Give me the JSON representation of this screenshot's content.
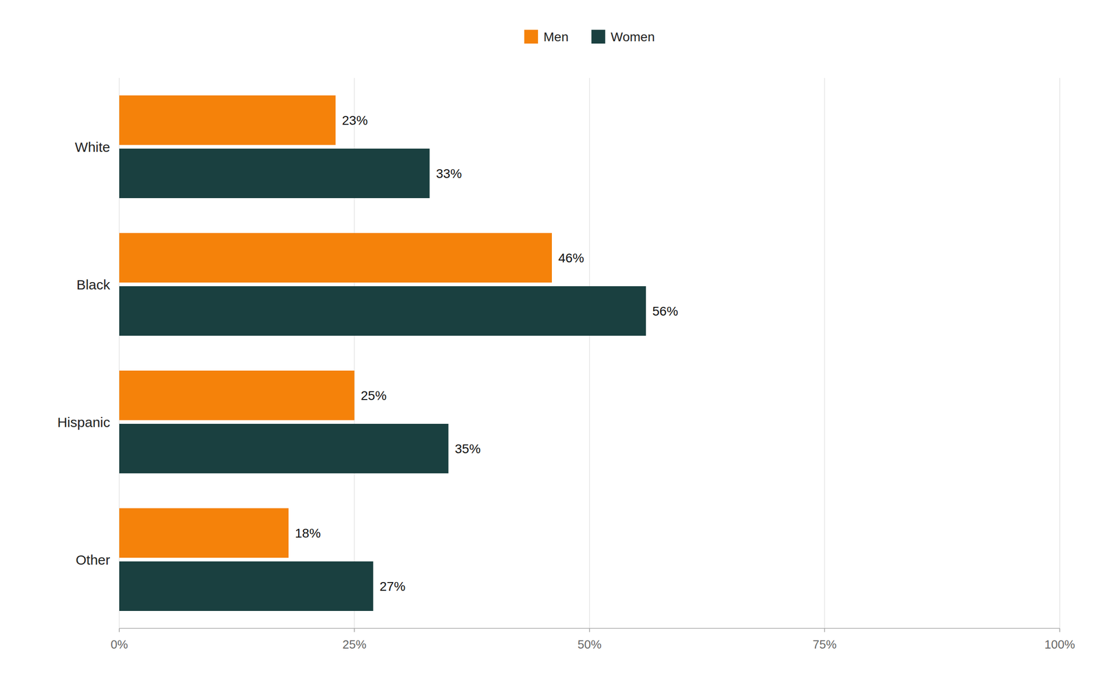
{
  "chart_data": {
    "type": "bar",
    "orientation": "horizontal",
    "categories": [
      "White",
      "Black",
      "Hispanic",
      "Other"
    ],
    "series": [
      {
        "name": "Men",
        "color": "#F5820A",
        "values": [
          23,
          46,
          25,
          18
        ],
        "value_labels": [
          "23%",
          "46%",
          "25%",
          "18%"
        ]
      },
      {
        "name": "Women",
        "color": "#1A4040",
        "values": [
          33,
          56,
          35,
          27
        ],
        "value_labels": [
          "33%",
          "56%",
          "35%",
          "27%"
        ]
      }
    ],
    "xlim": [
      0,
      100
    ],
    "xticks": [
      {
        "value": 0,
        "label": "0%"
      },
      {
        "value": 25,
        "label": "25%"
      },
      {
        "value": 50,
        "label": "50%"
      },
      {
        "value": 75,
        "label": "75%"
      },
      {
        "value": 100,
        "label": "100%"
      }
    ],
    "grid": true,
    "data_labels": true,
    "legend": "top"
  }
}
